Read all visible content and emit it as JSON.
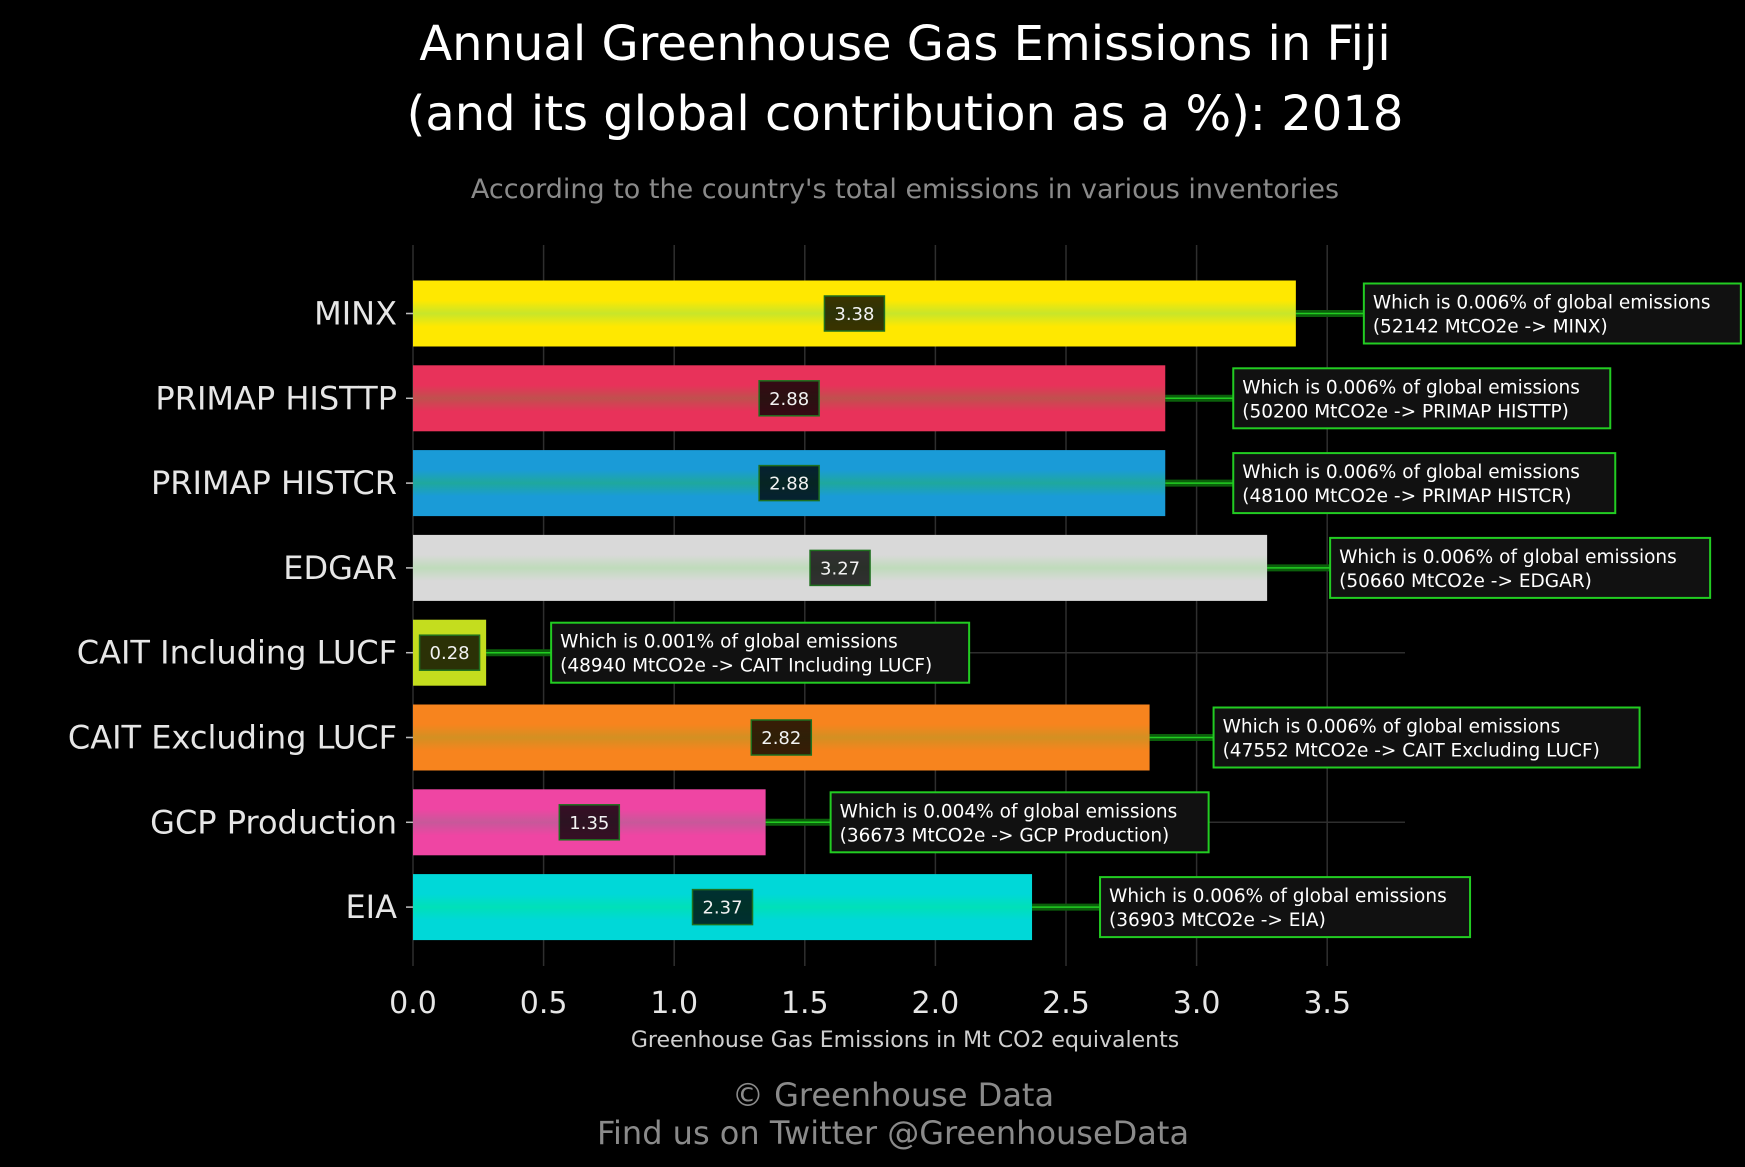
{
  "chart_data": {
    "type": "bar",
    "orientation": "horizontal",
    "title_line1": "Annual Greenhouse Gas Emissions in Fiji",
    "title_line2": "(and its global contribution as a %): 2018",
    "subtitle": "According to the country's total emissions in various inventories",
    "xlabel": "Greenhouse Gas Emissions in Mt CO2 equivalents",
    "ylabel": "",
    "xlim": [
      0,
      3.8
    ],
    "xticks": [
      "0.0",
      "0.5",
      "1.0",
      "1.5",
      "2.0",
      "2.5",
      "3.0",
      "3.5"
    ],
    "grid": true,
    "categories": [
      "MINX",
      "PRIMAP HISTTP",
      "PRIMAP HISTCR",
      "EDGAR",
      "CAIT Including LUCF",
      "CAIT Excluding LUCF",
      "GCP Production",
      "EIA"
    ],
    "values": [
      3.38,
      2.88,
      2.88,
      3.27,
      0.28,
      2.82,
      1.35,
      2.37
    ],
    "value_labels": [
      "3.38",
      "2.88",
      "2.88",
      "3.27",
      "0.28",
      "2.82",
      "1.35",
      "2.37"
    ],
    "colors": [
      "#ffe800",
      "#e8325a",
      "#1a9bd7",
      "#d9d9d9",
      "#c4dd1e",
      "#f7841e",
      "#ef45a3",
      "#00d8d8"
    ],
    "mid_colors": [
      "#c8e62a",
      "#c0504e",
      "#1fa89d",
      "#bfdbbb",
      "#c4dd1e",
      "#d39022",
      "#c8589a",
      "#00e0b8"
    ],
    "annotations": [
      {
        "line1": "Which is 0.006% of global emissions",
        "line2": "(52142 MtCO2e -> MINX)"
      },
      {
        "line1": "Which is 0.006% of global emissions",
        "line2": "(50200 MtCO2e -> PRIMAP HISTTP)"
      },
      {
        "line1": "Which is 0.006% of global emissions",
        "line2": "(48100 MtCO2e -> PRIMAP HISTCR)"
      },
      {
        "line1": "Which is 0.006% of global emissions",
        "line2": "(50660 MtCO2e -> EDGAR)"
      },
      {
        "line1": "Which is 0.001% of global emissions",
        "line2": "(48940 MtCO2e -> CAIT Including LUCF)"
      },
      {
        "line1": "Which is 0.006% of global emissions",
        "line2": "(47552 MtCO2e -> CAIT Excluding LUCF)"
      },
      {
        "line1": "Which is 0.004% of global emissions",
        "line2": "(36673 MtCO2e -> GCP Production)"
      },
      {
        "line1": "Which is 0.006% of global emissions",
        "line2": "(36903 MtCO2e -> EIA)"
      }
    ],
    "accent_color": "#22cc22",
    "background": "#000000"
  },
  "footer": {
    "line1": "© Greenhouse Data",
    "line2": "Find us on Twitter @GreenhouseData"
  }
}
